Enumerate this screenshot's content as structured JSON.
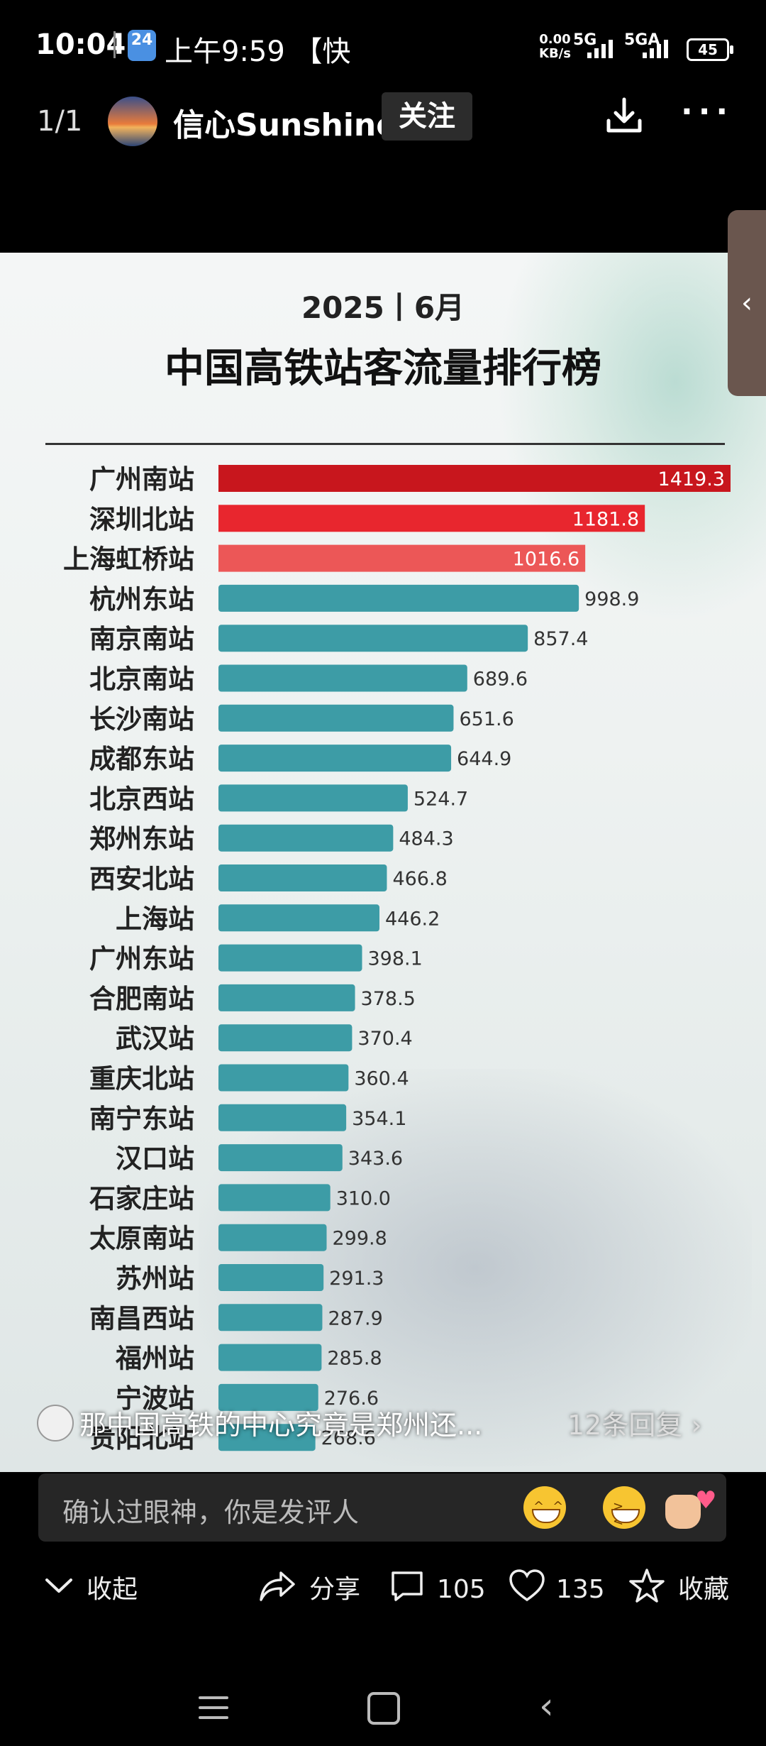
{
  "status_bar": {
    "time": "10:04",
    "calendar_day": "24",
    "notification_text": "上午9:59 【快",
    "net_speed_value": "0.00",
    "net_speed_unit": "KB/s",
    "signal1": "5G",
    "signal2": "5GA",
    "battery": "45"
  },
  "header": {
    "counter": "1/1",
    "author_name": "信心Sunshine",
    "follow_label": "关注",
    "more_label": "···"
  },
  "poster": {
    "title_line1": "2025丨6月",
    "title_line2": "中国高铁站客流量排行榜"
  },
  "chart_data": {
    "type": "bar",
    "orientation": "horizontal",
    "title": "2025丨6月 中国高铁站客流量排行榜",
    "categories": [
      "广州南站",
      "深圳北站",
      "上海虹桥站",
      "杭州东站",
      "南京南站",
      "北京南站",
      "长沙南站",
      "成都东站",
      "北京西站",
      "郑州东站",
      "西安北站",
      "上海站",
      "广州东站",
      "合肥南站",
      "武汉站",
      "重庆北站",
      "南宁东站",
      "汉口站",
      "石家庄站",
      "太原南站",
      "苏州站",
      "南昌西站",
      "福州站",
      "宁波站",
      "贵阳北站"
    ],
    "values": [
      1419.3,
      1181.8,
      1016.6,
      998.9,
      857.4,
      689.6,
      651.6,
      644.9,
      524.7,
      484.3,
      466.8,
      446.2,
      398.1,
      378.5,
      370.4,
      360.4,
      354.1,
      343.6,
      310.0,
      299.8,
      291.3,
      287.9,
      285.8,
      276.6,
      268.6
    ],
    "value_labels": [
      "1419.3",
      "1181.8",
      "1016.6",
      "998.9",
      "857.4",
      "689.6",
      "651.6",
      "644.9",
      "524.7",
      "484.3",
      "466.8",
      "446.2",
      "398.1",
      "378.5",
      "370.4",
      "360.4",
      "354.1",
      "343.6",
      "310.0",
      "299.8",
      "291.3",
      "287.9",
      "285.8",
      "276.6",
      "268.6"
    ],
    "colors": {
      "top1": "#c8161d",
      "top2": "#e8262e",
      "top3": "#ec5757",
      "rest": "#3d9ca6"
    },
    "xlim": [
      0,
      1419.3
    ],
    "grid": false,
    "legend": false
  },
  "comment_preview": {
    "text": "那中国高铁的中心究竟是郑州还...",
    "replies": "12条回复 ›"
  },
  "comment_input": {
    "placeholder": "确认过眼神，你是发评人"
  },
  "actions": {
    "collapse": "收起",
    "share": "分享",
    "comments": "105",
    "likes": "135",
    "favorite": "收藏"
  }
}
